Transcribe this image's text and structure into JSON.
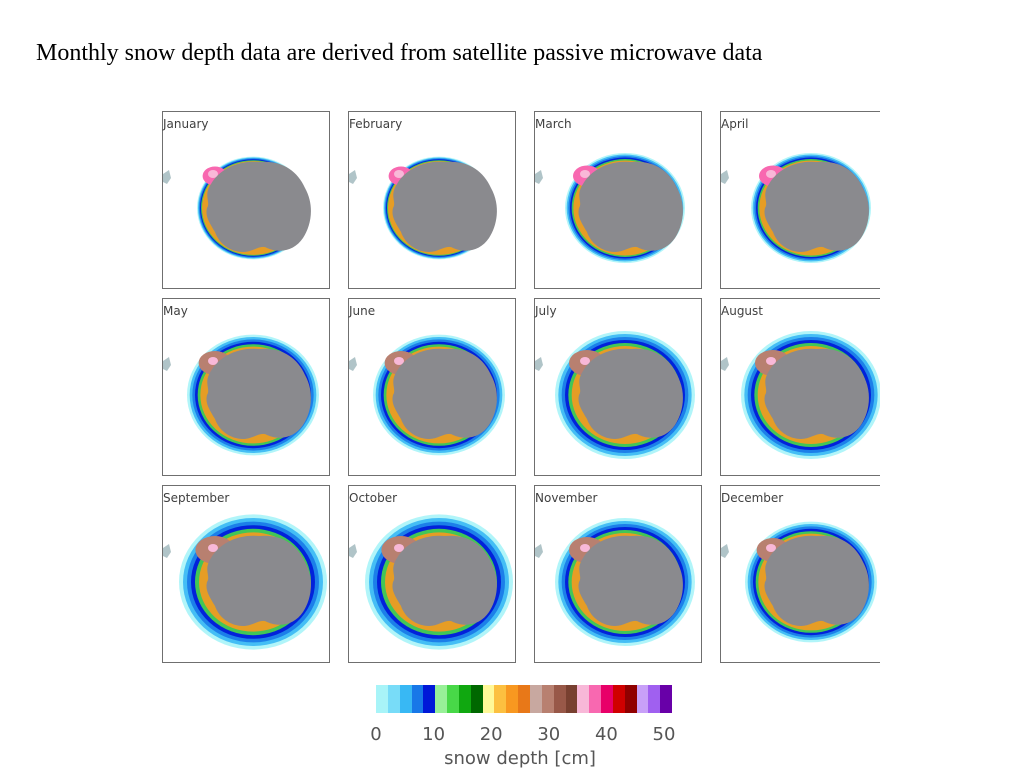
{
  "title": "Monthly snow depth data are derived from satellite passive microwave data",
  "panels": [
    {
      "month": "January",
      "snow_extent": "minimum"
    },
    {
      "month": "February",
      "snow_extent": "minimum"
    },
    {
      "month": "March",
      "snow_extent": "low"
    },
    {
      "month": "April",
      "snow_extent": "low"
    },
    {
      "month": "May",
      "snow_extent": "medium"
    },
    {
      "month": "June",
      "snow_extent": "medium"
    },
    {
      "month": "July",
      "snow_extent": "high"
    },
    {
      "month": "August",
      "snow_extent": "high"
    },
    {
      "month": "September",
      "snow_extent": "maximum"
    },
    {
      "month": "October",
      "snow_extent": "maximum"
    },
    {
      "month": "November",
      "snow_extent": "high"
    },
    {
      "month": "December",
      "snow_extent": "medium"
    }
  ],
  "map_colors": {
    "continent": "#8a8a8e",
    "land_outline": "#b0c4c8"
  },
  "colorbar": {
    "colors": [
      "#a8f4f8",
      "#78dcf8",
      "#38b8f4",
      "#1878e8",
      "#0018d8",
      "#98f098",
      "#48d848",
      "#10a810",
      "#006800",
      "#fff898",
      "#fcc040",
      "#f89820",
      "#e87818",
      "#c8a8a0",
      "#b88070",
      "#985848",
      "#784030",
      "#f8b8d8",
      "#f868b0",
      "#e80068",
      "#d00000",
      "#900000",
      "#c8a0f8",
      "#a060f0",
      "#6800a8"
    ],
    "ticks": [
      "0",
      "10",
      "20",
      "30",
      "40",
      "50"
    ],
    "range": [
      0,
      50
    ],
    "label": "snow depth [cm]"
  }
}
